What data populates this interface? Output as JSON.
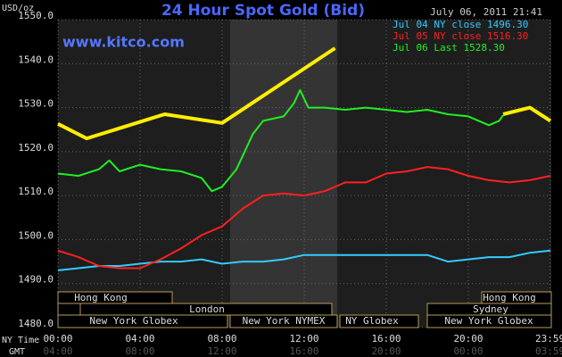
{
  "chart_data": {
    "type": "line",
    "title": "24 Hour Spot Gold (Bid)",
    "site": "www.kitco.com",
    "timestamp": "July 06, 2011 21:41",
    "y_unit": "USD/oz",
    "x_row_labels": [
      "NY Time",
      "GMT"
    ],
    "ylim": [
      1480,
      1550
    ],
    "yticks": [
      {
        "value": 1480,
        "label": "1480.0"
      },
      {
        "value": 1490,
        "label": "1490.0"
      },
      {
        "value": 1500,
        "label": "1500.0"
      },
      {
        "value": 1510,
        "label": "1510.0"
      },
      {
        "value": 1520,
        "label": "1520.0"
      },
      {
        "value": 1530,
        "label": "1530.0"
      },
      {
        "value": 1540,
        "label": "1540.0"
      },
      {
        "value": 1550,
        "label": "1550.0"
      }
    ],
    "xlim": [
      0,
      24
    ],
    "xticks": [
      {
        "value": 0,
        "label": "00:00"
      },
      {
        "value": 4,
        "label": "04:00"
      },
      {
        "value": 8,
        "label": "08:00"
      },
      {
        "value": 12,
        "label": "12:00"
      },
      {
        "value": 16,
        "label": "16:00"
      },
      {
        "value": 20,
        "label": "20:00"
      },
      {
        "value": 23.98,
        "label": "23:59"
      }
    ],
    "gmt_labels": [
      "04:00",
      "08:00",
      "12:00",
      "16:00",
      "20:00",
      "00:00",
      "03:59"
    ],
    "grid": true,
    "sessions": [
      "Hong Kong",
      "London",
      "New York Globex",
      "New York NYMEX",
      "NY Globex",
      "Sydney",
      "Hong Kong",
      "New York Globex"
    ],
    "series": [
      {
        "name": "Jul 04 NY close 1496.30",
        "color": "#33ccff",
        "x": [
          0,
          1,
          2,
          3,
          4,
          5,
          6,
          7,
          8,
          9,
          10,
          11,
          12,
          13,
          14,
          15,
          16,
          17,
          18,
          19,
          20,
          21,
          22,
          23,
          24
        ],
        "values": [
          1493,
          1493.5,
          1494,
          1494,
          1494.5,
          1495,
          1495,
          1495.5,
          1494.5,
          1495,
          1495,
          1495.5,
          1496.5,
          1496.5,
          1496.5,
          1496.5,
          1496.5,
          1496.5,
          1496.5,
          1495,
          1495.5,
          1496,
          1496,
          1497,
          1497.5
        ]
      },
      {
        "name": "Jul 05 NY close 1516.30",
        "color": "#ff2020",
        "x": [
          0,
          1,
          2,
          3,
          4,
          5,
          6,
          7,
          8,
          9,
          10,
          11,
          12,
          13,
          14,
          15,
          16,
          17,
          18,
          19,
          20,
          21,
          22,
          23,
          24
        ],
        "values": [
          1497.5,
          1496,
          1494,
          1493.5,
          1493.5,
          1495.5,
          1498,
          1501,
          1503,
          1507,
          1510,
          1510.5,
          1510,
          1511,
          1513,
          1513,
          1515,
          1515.5,
          1516.5,
          1516,
          1514.5,
          1513.5,
          1513,
          1513.5,
          1514.5
        ]
      },
      {
        "name": "Jul 06 Last 1528.30",
        "color": "#22ee22",
        "x": [
          0,
          1,
          2,
          2.5,
          3,
          4,
          5,
          6,
          7,
          7.5,
          8,
          8.7,
          9,
          9.5,
          10,
          11,
          11.5,
          11.8,
          12.2,
          13,
          14,
          15,
          16,
          17,
          18,
          19,
          20,
          21,
          21.5,
          21.7
        ],
        "values": [
          1515,
          1514.5,
          1516,
          1518,
          1515.5,
          1517,
          1516,
          1515.5,
          1514,
          1511,
          1512,
          1516,
          1519,
          1524,
          1527,
          1528,
          1531,
          1534,
          1530,
          1530,
          1529.5,
          1530,
          1529.5,
          1529,
          1529.5,
          1528.5,
          1528,
          1526,
          1527,
          1528.3
        ]
      },
      {
        "color": "#ffee00",
        "x": [
          0,
          1.4,
          5.2,
          8,
          13.5,
          17,
          21.7,
          23,
          24
        ],
        "values": [
          1526.3,
          1523,
          1528.5,
          1526.5,
          1543.5,
          null,
          1528.5,
          1530,
          1527
        ]
      }
    ]
  }
}
